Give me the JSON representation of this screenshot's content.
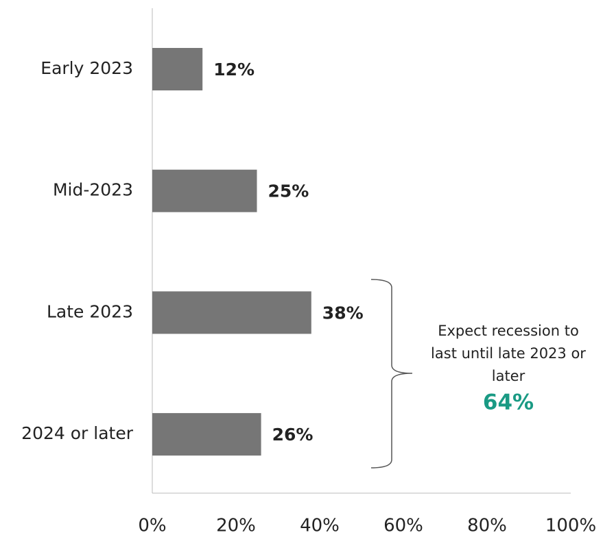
{
  "chart_data": {
    "type": "hbar",
    "categories": [
      "Early 2023",
      "Mid-2023",
      "Late 2023",
      "2024 or later"
    ],
    "values": [
      12,
      25,
      38,
      26
    ],
    "value_labels": [
      "12%",
      "25%",
      "38%",
      "26%"
    ],
    "color": "#767676",
    "xlim": [
      0,
      100
    ],
    "xticks": [
      {
        "value": 0,
        "label": "0%"
      },
      {
        "value": 20,
        "label": "20%"
      },
      {
        "value": 40,
        "label": "40%"
      },
      {
        "value": 60,
        "label": "60%"
      },
      {
        "value": 80,
        "label": "80%"
      },
      {
        "value": 100,
        "label": "100%"
      }
    ],
    "annotation": {
      "lines": [
        "Expect recession to",
        "last until late 2023 or",
        "later"
      ],
      "value_label": "64%",
      "color": "#1a9a84"
    }
  }
}
